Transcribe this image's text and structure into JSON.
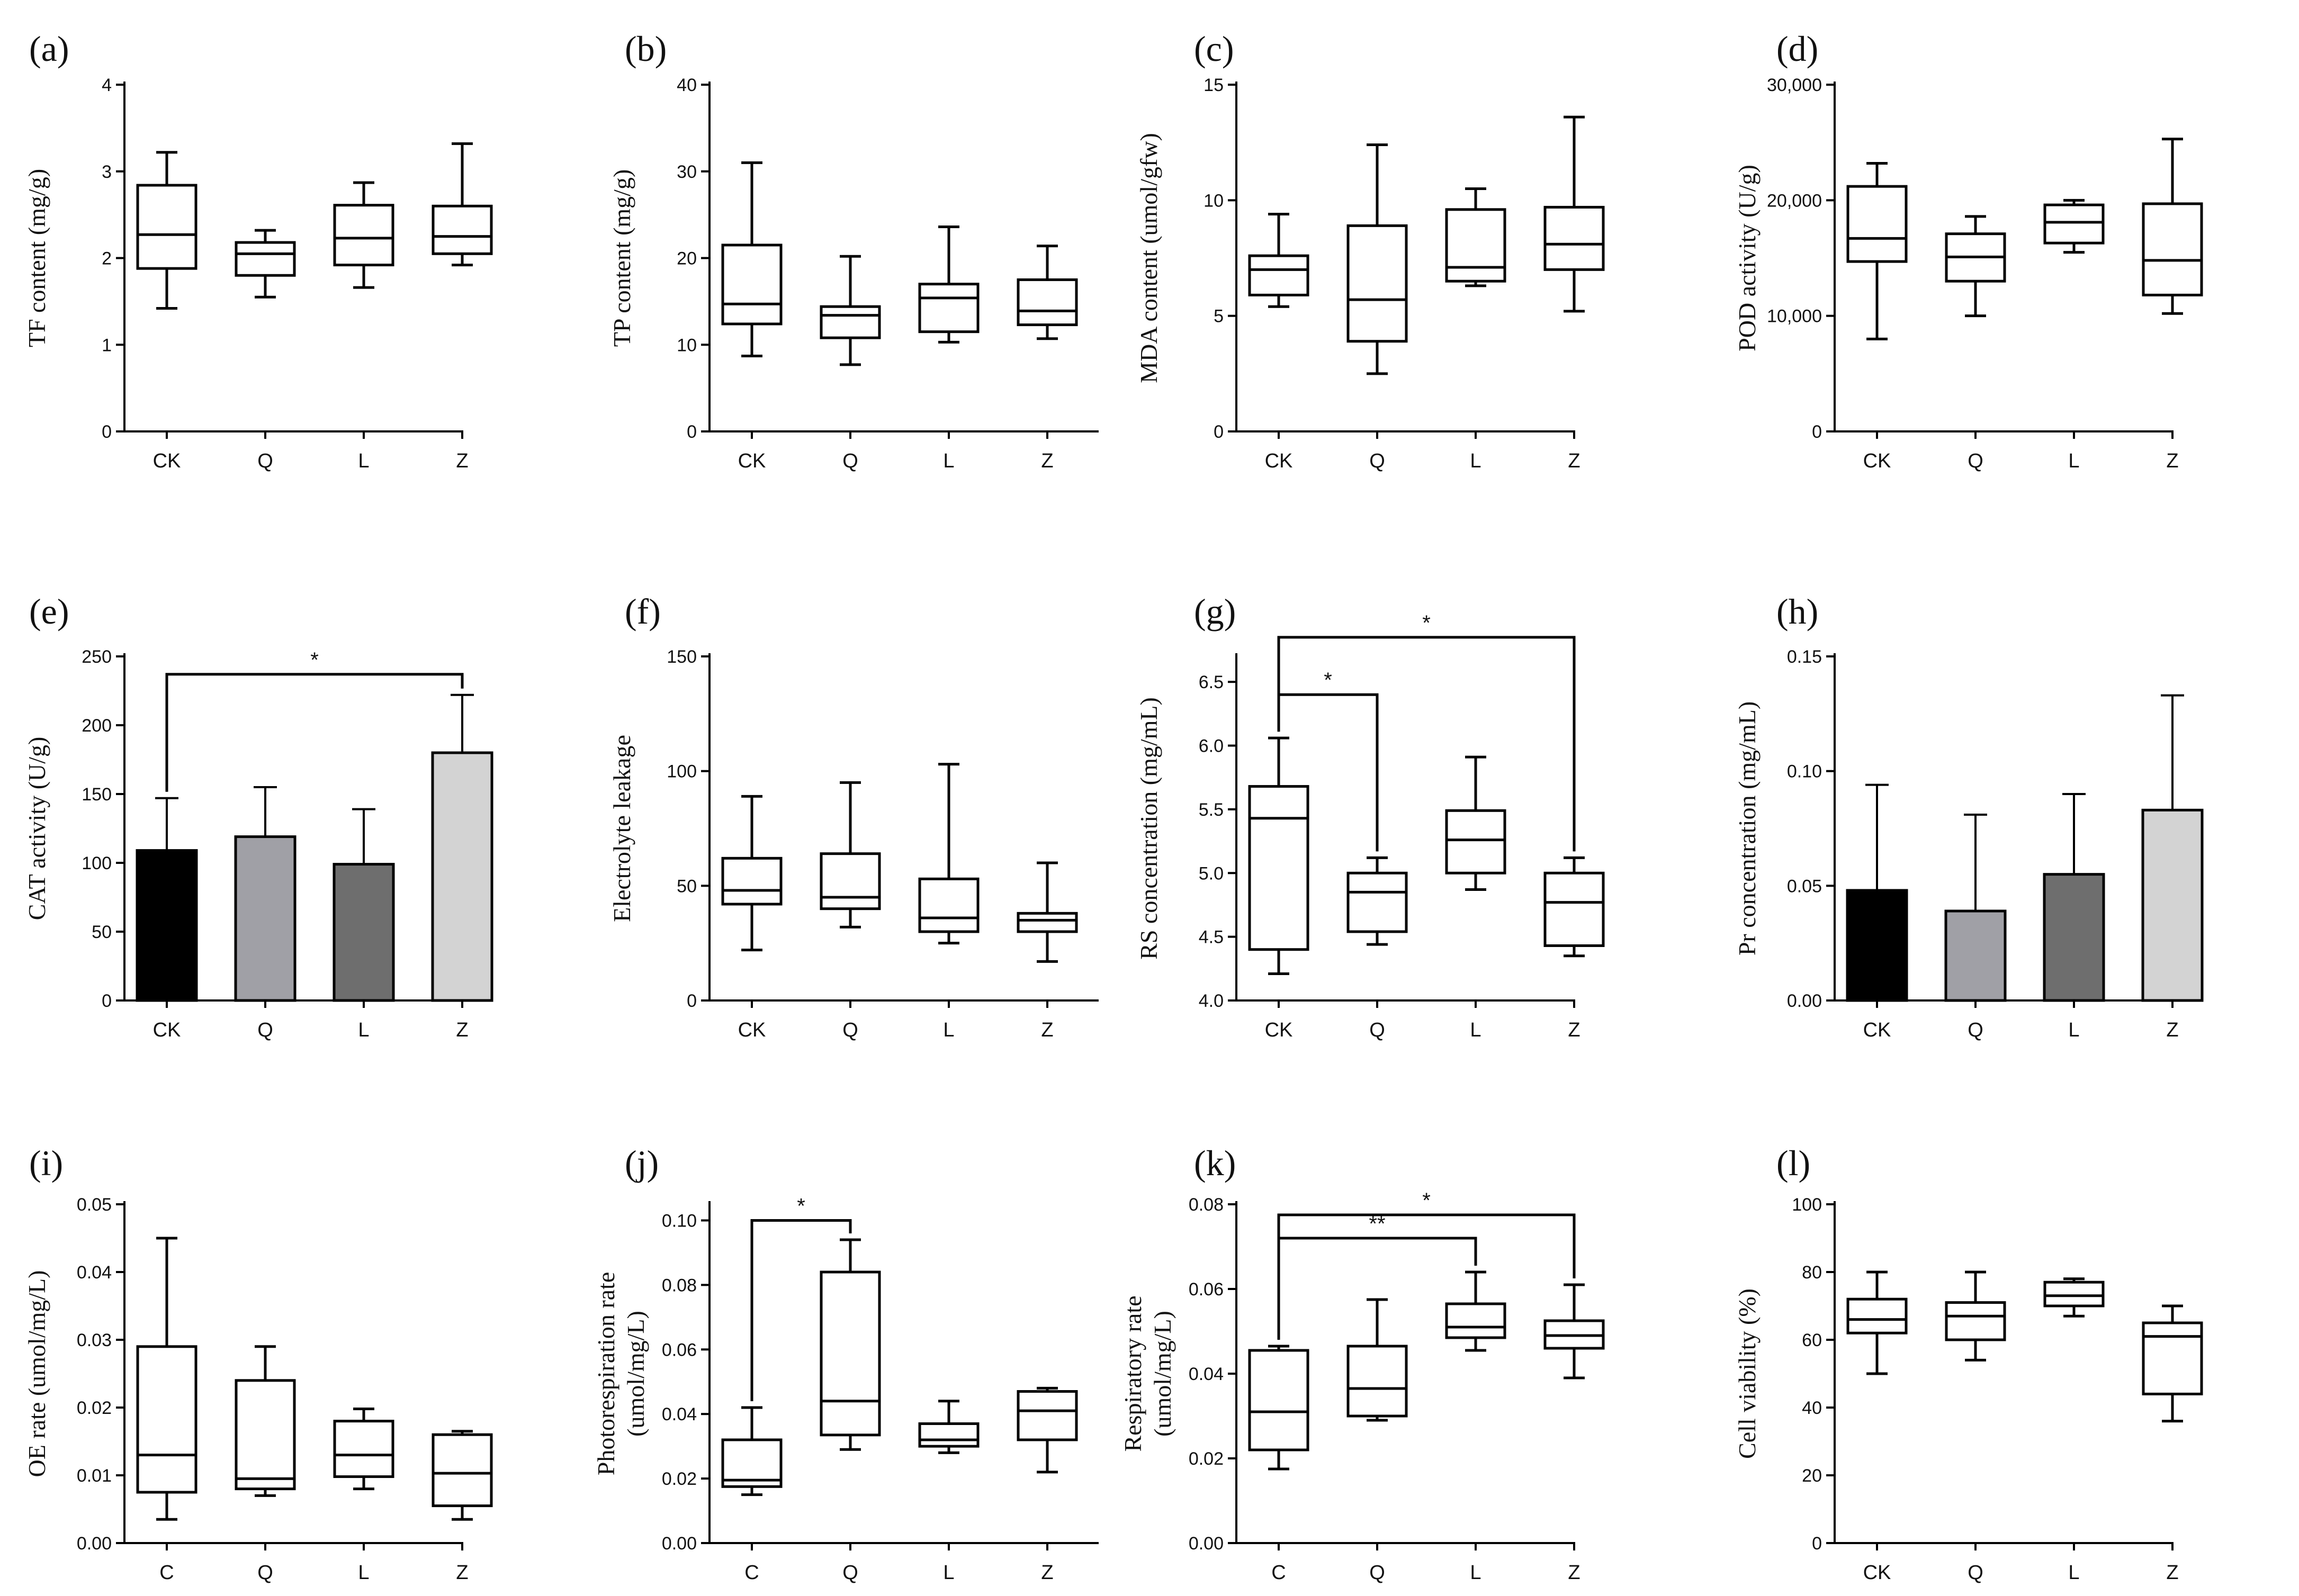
{
  "figure": {
    "background": "#ffffff",
    "line_color": "#000000"
  },
  "chart_data": [
    {
      "id": "a",
      "label": "(a)",
      "type": "box",
      "ylabel": "TF content (mg/g)",
      "ylim": [
        0,
        4
      ],
      "yticks": [
        0,
        1,
        2,
        3,
        4
      ],
      "ytick_labels": [
        "0",
        "1",
        "2",
        "3",
        "4"
      ],
      "categories": [
        "CK",
        "Q",
        "L",
        "Z"
      ],
      "boxes": [
        {
          "min": 1.42,
          "q1": 1.88,
          "median": 2.27,
          "q3": 2.84,
          "max": 3.22
        },
        {
          "min": 1.55,
          "q1": 1.8,
          "median": 2.05,
          "q3": 2.18,
          "max": 2.32
        },
        {
          "min": 1.66,
          "q1": 1.92,
          "median": 2.23,
          "q3": 2.61,
          "max": 2.87
        },
        {
          "min": 1.92,
          "q1": 2.05,
          "median": 2.25,
          "q3": 2.6,
          "max": 3.32
        }
      ]
    },
    {
      "id": "b",
      "label": "(b)",
      "type": "box",
      "ylabel": "TP content (mg/g)",
      "ylim": [
        0,
        40
      ],
      "yticks": [
        0,
        10,
        20,
        30,
        40
      ],
      "ytick_labels": [
        "0",
        "10",
        "20",
        "30",
        "40"
      ],
      "categories": [
        "CK",
        "Q",
        "L",
        "Z"
      ],
      "boxes": [
        {
          "min": 8.7,
          "q1": 12.4,
          "median": 14.7,
          "q3": 21.5,
          "max": 31.0
        },
        {
          "min": 7.7,
          "q1": 10.8,
          "median": 13.4,
          "q3": 14.4,
          "max": 20.2
        },
        {
          "min": 10.3,
          "q1": 11.5,
          "median": 15.4,
          "q3": 17.0,
          "max": 23.6
        },
        {
          "min": 10.7,
          "q1": 12.3,
          "median": 13.9,
          "q3": 17.5,
          "max": 21.4
        }
      ]
    },
    {
      "id": "c",
      "label": "(c)",
      "type": "box",
      "ylabel": "MDA content (umol/gfw)",
      "ylim": [
        0,
        15
      ],
      "yticks": [
        0,
        5,
        10,
        15
      ],
      "ytick_labels": [
        "0",
        "5",
        "10",
        "15"
      ],
      "categories": [
        "CK",
        "Q",
        "L",
        "Z"
      ],
      "boxes": [
        {
          "min": 5.4,
          "q1": 5.9,
          "median": 7.0,
          "q3": 7.6,
          "max": 9.4
        },
        {
          "min": 2.5,
          "q1": 3.9,
          "median": 5.7,
          "q3": 8.9,
          "max": 12.4
        },
        {
          "min": 6.3,
          "q1": 6.5,
          "median": 7.1,
          "q3": 9.6,
          "max": 10.5
        },
        {
          "min": 5.2,
          "q1": 7.0,
          "median": 8.1,
          "q3": 9.7,
          "max": 13.6
        }
      ]
    },
    {
      "id": "d",
      "label": "(d)",
      "type": "box",
      "ylabel": "POD activity (U/g)",
      "ylim": [
        0,
        30000
      ],
      "yticks": [
        0,
        10000,
        20000,
        30000
      ],
      "ytick_labels": [
        "0",
        "10,000",
        "20,000",
        "30,000"
      ],
      "categories": [
        "CK",
        "Q",
        "L",
        "Z"
      ],
      "boxes": [
        {
          "min": 8000,
          "q1": 14700,
          "median": 16700,
          "q3": 21200,
          "max": 23200
        },
        {
          "min": 10000,
          "q1": 13000,
          "median": 15100,
          "q3": 17100,
          "max": 18600
        },
        {
          "min": 15500,
          "q1": 16300,
          "median": 18100,
          "q3": 19600,
          "max": 20000
        },
        {
          "min": 10200,
          "q1": 11800,
          "median": 14800,
          "q3": 19700,
          "max": 25300
        }
      ]
    },
    {
      "id": "e",
      "label": "(e)",
      "type": "bar",
      "ylabel": "CAT activity (U/g)",
      "ylim": [
        0,
        250
      ],
      "yticks": [
        0,
        50,
        100,
        150,
        200,
        250
      ],
      "ytick_labels": [
        "0",
        "50",
        "100",
        "150",
        "200",
        "250"
      ],
      "categories": [
        "CK",
        "Q",
        "L",
        "Z"
      ],
      "values": [
        109,
        119,
        99,
        180
      ],
      "errors": [
        38,
        36,
        40,
        42
      ],
      "colors": [
        "#000000",
        "#a0a0a6",
        "#6e6e6e",
        "#d3d3d3"
      ],
      "sig": [
        {
          "from": 0,
          "to": 3,
          "y": 237,
          "text": "*"
        }
      ]
    },
    {
      "id": "f",
      "label": "(f)",
      "type": "box",
      "ylabel": "Electrolyte leakage",
      "ylim": [
        0,
        150
      ],
      "yticks": [
        0,
        50,
        100,
        150
      ],
      "ytick_labels": [
        "0",
        "50",
        "100",
        "150"
      ],
      "categories": [
        "CK",
        "Q",
        "L",
        "Z"
      ],
      "boxes": [
        {
          "min": 22,
          "q1": 42,
          "median": 48,
          "q3": 62,
          "max": 89
        },
        {
          "min": 32,
          "q1": 40,
          "median": 45,
          "q3": 64,
          "max": 95
        },
        {
          "min": 25,
          "q1": 30,
          "median": 36,
          "q3": 53,
          "max": 103
        },
        {
          "min": 17,
          "q1": 30,
          "median": 35,
          "q3": 38,
          "max": 60
        }
      ]
    },
    {
      "id": "g",
      "label": "(g)",
      "type": "box",
      "ylabel": "RS concentration (mg/mL)",
      "ylim": [
        4.0,
        6.7
      ],
      "yticks": [
        4.0,
        4.5,
        5.0,
        5.5,
        6.0,
        6.5
      ],
      "ytick_labels": [
        "4.0",
        "4.5",
        "5.0",
        "5.5",
        "6.0",
        "6.5"
      ],
      "categories": [
        "CK",
        "Q",
        "L",
        "Z"
      ],
      "boxes": [
        {
          "min": 4.21,
          "q1": 4.4,
          "median": 5.43,
          "q3": 5.68,
          "max": 6.06
        },
        {
          "min": 4.44,
          "q1": 4.54,
          "median": 4.85,
          "q3": 5.0,
          "max": 5.12
        },
        {
          "min": 4.87,
          "q1": 5.0,
          "median": 5.26,
          "q3": 5.49,
          "max": 5.91
        },
        {
          "min": 4.35,
          "q1": 4.43,
          "median": 4.77,
          "q3": 5.0,
          "max": 5.12
        }
      ],
      "sig": [
        {
          "from": 0,
          "to": 1,
          "y": 6.4,
          "text": "*"
        },
        {
          "from": 0,
          "to": 3,
          "y": 6.85,
          "text": "*"
        }
      ]
    },
    {
      "id": "h",
      "label": "(h)",
      "type": "bar",
      "ylabel": "Pr concentration (mg/mL)",
      "ylim": [
        0,
        0.15
      ],
      "yticks": [
        0,
        0.05,
        0.1,
        0.15
      ],
      "ytick_labels": [
        "0.00",
        "0.05",
        "0.10",
        "0.15"
      ],
      "categories": [
        "CK",
        "Q",
        "L",
        "Z"
      ],
      "values": [
        0.048,
        0.039,
        0.055,
        0.083
      ],
      "errors": [
        0.046,
        0.042,
        0.035,
        0.05
      ],
      "colors": [
        "#000000",
        "#a0a0a6",
        "#6e6e6e",
        "#d3d3d3"
      ]
    },
    {
      "id": "i",
      "label": "(i)",
      "type": "box",
      "ylabel": "OE rate (umol/mg/L)",
      "ylim": [
        0,
        0.05
      ],
      "yticks": [
        0,
        0.01,
        0.02,
        0.03,
        0.04,
        0.05
      ],
      "ytick_labels": [
        "0.00",
        "0.01",
        "0.02",
        "0.03",
        "0.04",
        "0.05"
      ],
      "categories": [
        "C",
        "Q",
        "L",
        "Z"
      ],
      "boxes": [
        {
          "min": 0.0035,
          "q1": 0.0075,
          "median": 0.013,
          "q3": 0.029,
          "max": 0.045
        },
        {
          "min": 0.007,
          "q1": 0.008,
          "median": 0.0095,
          "q3": 0.024,
          "max": 0.029
        },
        {
          "min": 0.008,
          "q1": 0.0098,
          "median": 0.013,
          "q3": 0.018,
          "max": 0.0198
        },
        {
          "min": 0.0035,
          "q1": 0.0055,
          "median": 0.0103,
          "q3": 0.016,
          "max": 0.0165
        }
      ]
    },
    {
      "id": "j",
      "label": "(j)",
      "type": "box",
      "ylabel": "Photorespiration rate|(umol/mg/L)",
      "ylim": [
        0,
        0.105
      ],
      "yticks": [
        0,
        0.02,
        0.04,
        0.06,
        0.08,
        0.1
      ],
      "ytick_labels": [
        "0.00",
        "0.02",
        "0.04",
        "0.06",
        "0.08",
        "0.10"
      ],
      "categories": [
        "C",
        "Q",
        "L",
        "Z"
      ],
      "boxes": [
        {
          "min": 0.015,
          "q1": 0.0175,
          "median": 0.0195,
          "q3": 0.032,
          "max": 0.042
        },
        {
          "min": 0.029,
          "q1": 0.0335,
          "median": 0.044,
          "q3": 0.084,
          "max": 0.094
        },
        {
          "min": 0.028,
          "q1": 0.03,
          "median": 0.032,
          "q3": 0.037,
          "max": 0.044
        },
        {
          "min": 0.022,
          "q1": 0.032,
          "median": 0.041,
          "q3": 0.047,
          "max": 0.048
        }
      ],
      "sig": [
        {
          "from": 0,
          "to": 1,
          "y": 0.1,
          "text": "*"
        }
      ]
    },
    {
      "id": "k",
      "label": "(k)",
      "type": "box",
      "ylabel": "Respiratory rate|(umol/mg/L)",
      "ylim": [
        0,
        0.08
      ],
      "yticks": [
        0,
        0.02,
        0.04,
        0.06,
        0.08
      ],
      "ytick_labels": [
        "0.00",
        "0.02",
        "0.04",
        "0.06",
        "0.08"
      ],
      "categories": [
        "C",
        "Q",
        "L",
        "Z"
      ],
      "boxes": [
        {
          "min": 0.0175,
          "q1": 0.022,
          "median": 0.031,
          "q3": 0.0455,
          "max": 0.0465
        },
        {
          "min": 0.029,
          "q1": 0.03,
          "median": 0.0365,
          "q3": 0.0465,
          "max": 0.0575
        },
        {
          "min": 0.0455,
          "q1": 0.0485,
          "median": 0.051,
          "q3": 0.0565,
          "max": 0.064
        },
        {
          "min": 0.039,
          "q1": 0.046,
          "median": 0.049,
          "q3": 0.0525,
          "max": 0.061
        }
      ],
      "sig": [
        {
          "from": 0,
          "to": 2,
          "y": 0.072,
          "text": "**"
        },
        {
          "from": 0,
          "to": 3,
          "y": 0.0775,
          "text": "*"
        }
      ]
    },
    {
      "id": "l",
      "label": "(l)",
      "type": "box",
      "ylabel": "Cell viability (%)",
      "ylim": [
        0,
        100
      ],
      "yticks": [
        0,
        20,
        40,
        60,
        80,
        100
      ],
      "ytick_labels": [
        "0",
        "20",
        "40",
        "60",
        "80",
        "100"
      ],
      "categories": [
        "CK",
        "Q",
        "L",
        "Z"
      ],
      "boxes": [
        {
          "min": 50,
          "q1": 62,
          "median": 66,
          "q3": 72,
          "max": 80
        },
        {
          "min": 54,
          "q1": 60,
          "median": 67,
          "q3": 71,
          "max": 80
        },
        {
          "min": 67,
          "q1": 70,
          "median": 73,
          "q3": 77,
          "max": 78
        },
        {
          "min": 36,
          "q1": 44,
          "median": 61,
          "q3": 65,
          "max": 70
        }
      ]
    }
  ]
}
